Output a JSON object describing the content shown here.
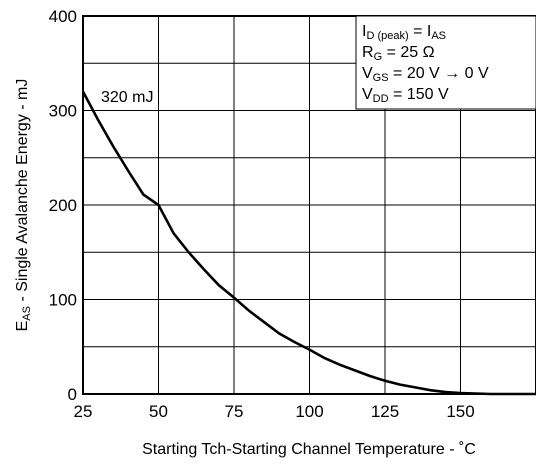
{
  "chart_data": {
    "type": "line",
    "title": "",
    "xlabel": "Starting Tch-Starting Channel Temperature - ˚C",
    "ylabel_prefix": "E",
    "ylabel_sub": "AS",
    "ylabel_rest": " - Single Avalanche Energy - mJ",
    "xlim": [
      25,
      175
    ],
    "ylim": [
      0,
      400
    ],
    "xticks": [
      25,
      50,
      75,
      100,
      125,
      150
    ],
    "yticks": [
      0,
      100,
      200,
      300,
      400
    ],
    "grid": true,
    "series": [
      {
        "x": [
          25,
          30,
          35,
          40,
          45,
          50,
          55,
          60,
          65,
          70,
          75,
          80,
          85,
          90,
          95,
          100,
          105,
          110,
          115,
          120,
          125,
          130,
          135,
          140,
          145,
          150,
          155,
          160,
          165,
          170,
          175
        ],
        "y": [
          320,
          290,
          262,
          236,
          211,
          200,
          170,
          150,
          132,
          115,
          102,
          88,
          76,
          64,
          55,
          47,
          38,
          31,
          25,
          19,
          14,
          10,
          7,
          4,
          2,
          1,
          0.5,
          0,
          0,
          0,
          0
        ],
        "color": "#000000"
      }
    ],
    "annotation": {
      "text": "320 mJ",
      "x": 25,
      "y": 320
    },
    "legend": {
      "placement": "top-right",
      "lines": [
        {
          "parts": [
            {
              "t": "I",
              "sub": false
            },
            {
              "t": "D (peak)",
              "sub": true
            },
            {
              "t": " = I",
              "sub": false
            },
            {
              "t": "AS",
              "sub": true
            }
          ]
        },
        {
          "parts": [
            {
              "t": "R",
              "sub": false
            },
            {
              "t": "G",
              "sub": true
            },
            {
              "t": " = 25 Ω",
              "sub": false
            }
          ]
        },
        {
          "parts": [
            {
              "t": "V",
              "sub": false
            },
            {
              "t": "GS",
              "sub": true
            },
            {
              "t": " = 20 V → 0 V",
              "sub": false
            }
          ]
        },
        {
          "parts": [
            {
              "t": "V",
              "sub": false
            },
            {
              "t": "DD",
              "sub": true
            },
            {
              "t": " = 150 V",
              "sub": false
            }
          ]
        }
      ]
    }
  }
}
